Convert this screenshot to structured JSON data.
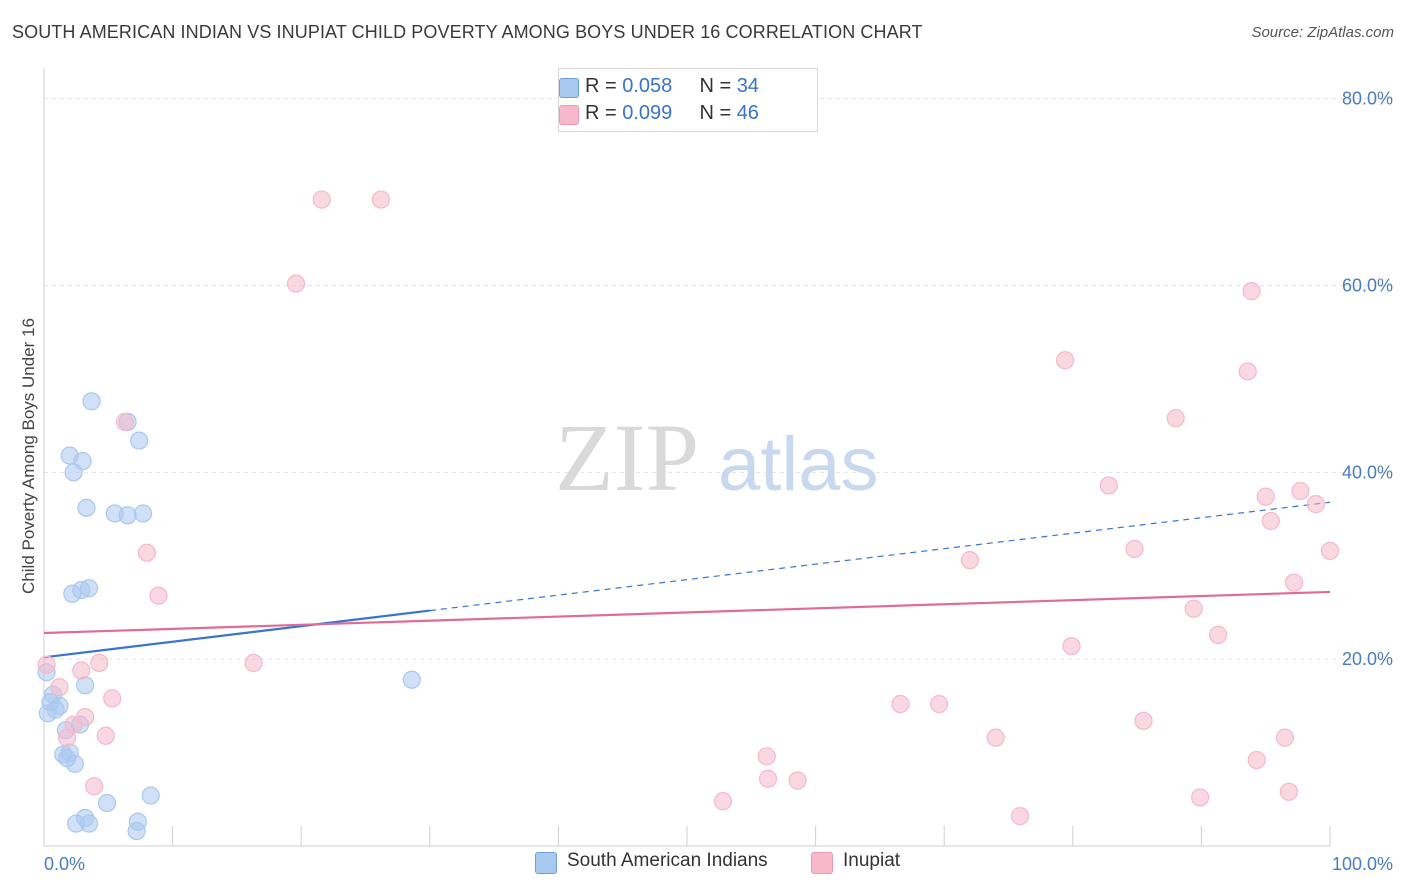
{
  "title": "SOUTH AMERICAN INDIAN VS INUPIAT CHILD POVERTY AMONG BOYS UNDER 16 CORRELATION CHART",
  "source": "Source: ZipAtlas.com",
  "watermark": {
    "zip": "ZIP",
    "atlas": "atlas"
  },
  "legend": {
    "rows": [
      {
        "r_label": "R = ",
        "r_value": "0.058",
        "n_label": "N = ",
        "n_value": "34",
        "color": "#a9c8f0"
      },
      {
        "r_label": "R = ",
        "r_value": "0.099",
        "n_label": "N = ",
        "n_value": "46",
        "color": "#f6b8ca"
      }
    ]
  },
  "bottom_legend": [
    {
      "label": "South American Indians",
      "color": "#a9c8f0"
    },
    {
      "label": "Inupiat",
      "color": "#f6b8ca"
    }
  ],
  "chart_data": {
    "type": "scatter",
    "title": "SOUTH AMERICAN INDIAN VS INUPIAT CHILD POVERTY AMONG BOYS UNDER 16 CORRELATION CHART",
    "xlabel": "",
    "ylabel": "Child Poverty Among Boys Under 16",
    "xlim": [
      0,
      100
    ],
    "ylim": [
      0,
      82
    ],
    "x_tick_labels": [
      "0.0%",
      "100.0%"
    ],
    "y_ticks": [
      20,
      40,
      60,
      80
    ],
    "y_tick_labels": [
      "20.0%",
      "40.0%",
      "60.0%",
      "80.0%"
    ],
    "grid": true,
    "legend_position": "top-center",
    "series": [
      {
        "name": "South American Indians",
        "color": "#5b8fd6",
        "fill": "#a9c8f0",
        "points": [
          [
            0.2,
            18.6
          ],
          [
            0.3,
            14.2
          ],
          [
            0.5,
            15.4
          ],
          [
            0.7,
            16.2
          ],
          [
            0.9,
            14.6
          ],
          [
            1.2,
            15.0
          ],
          [
            1.5,
            9.8
          ],
          [
            1.7,
            12.4
          ],
          [
            1.8,
            9.4
          ],
          [
            2.0,
            10.0
          ],
          [
            2.0,
            41.8
          ],
          [
            2.2,
            27.0
          ],
          [
            2.3,
            40.0
          ],
          [
            2.4,
            8.8
          ],
          [
            2.5,
            2.4
          ],
          [
            2.8,
            13.0
          ],
          [
            2.9,
            27.4
          ],
          [
            3.0,
            41.2
          ],
          [
            3.2,
            3.0
          ],
          [
            3.2,
            17.2
          ],
          [
            3.3,
            36.2
          ],
          [
            3.5,
            2.4
          ],
          [
            3.5,
            27.6
          ],
          [
            3.7,
            47.6
          ],
          [
            4.9,
            4.6
          ],
          [
            5.5,
            35.6
          ],
          [
            6.5,
            35.4
          ],
          [
            6.5,
            45.4
          ],
          [
            7.2,
            1.6
          ],
          [
            7.3,
            2.6
          ],
          [
            7.4,
            43.4
          ],
          [
            7.7,
            35.6
          ],
          [
            8.3,
            5.4
          ],
          [
            28.6,
            17.8
          ]
        ]
      },
      {
        "name": "Inupiat",
        "color": "#e87aa0",
        "fill": "#f6b8ca",
        "points": [
          [
            0.2,
            19.4
          ],
          [
            1.2,
            17.0
          ],
          [
            1.8,
            11.6
          ],
          [
            2.3,
            13.0
          ],
          [
            2.9,
            18.8
          ],
          [
            3.2,
            13.8
          ],
          [
            3.9,
            6.4
          ],
          [
            4.3,
            19.6
          ],
          [
            4.8,
            11.8
          ],
          [
            5.3,
            15.8
          ],
          [
            6.3,
            45.4
          ],
          [
            8.0,
            31.4
          ],
          [
            8.9,
            26.8
          ],
          [
            16.3,
            19.6
          ],
          [
            19.6,
            60.2
          ],
          [
            21.6,
            69.2
          ],
          [
            26.2,
            69.2
          ],
          [
            52.8,
            4.8
          ],
          [
            56.2,
            9.6
          ],
          [
            56.3,
            7.2
          ],
          [
            58.6,
            7.0
          ],
          [
            66.6,
            15.2
          ],
          [
            69.6,
            15.2
          ],
          [
            74.0,
            11.6
          ],
          [
            75.9,
            3.2
          ],
          [
            79.4,
            52.0
          ],
          [
            79.9,
            21.4
          ],
          [
            82.8,
            38.6
          ],
          [
            84.8,
            31.8
          ],
          [
            85.5,
            13.4
          ],
          [
            88.0,
            45.8
          ],
          [
            89.4,
            25.4
          ],
          [
            89.9,
            5.2
          ],
          [
            91.3,
            22.6
          ],
          [
            93.6,
            50.8
          ],
          [
            93.9,
            59.4
          ],
          [
            94.3,
            9.2
          ],
          [
            95.0,
            37.4
          ],
          [
            95.4,
            34.8
          ],
          [
            96.5,
            11.6
          ],
          [
            96.8,
            5.8
          ],
          [
            97.2,
            28.2
          ],
          [
            97.7,
            38.0
          ],
          [
            98.9,
            36.6
          ],
          [
            100.0,
            31.6
          ],
          [
            72.0,
            30.6
          ]
        ]
      }
    ],
    "trend_lines": [
      {
        "series": "South American Indians",
        "x": [
          0,
          30
        ],
        "y": [
          20.2,
          25.2
        ],
        "extended_to": [
          100,
          36.8
        ]
      },
      {
        "series": "Inupiat",
        "x": [
          0,
          100
        ],
        "y": [
          22.8,
          27.2
        ]
      }
    ]
  }
}
